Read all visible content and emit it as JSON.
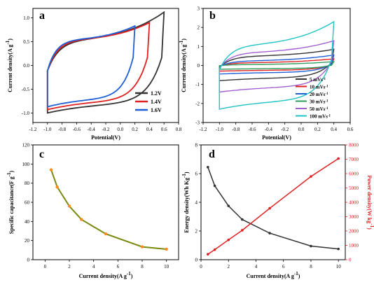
{
  "chart_data": [
    {
      "id": "a",
      "type": "line",
      "panel_letter": "a",
      "xlabel": "Potential(V)",
      "ylabel": "Current density(A g",
      "ylabel_sup": "-1",
      "ylabel_end": ")",
      "xlim": [
        -1.2,
        0.8
      ],
      "ylim": [
        -1.2,
        1.2
      ],
      "xticks": [
        "-1.2",
        "-1.0",
        "-0.8",
        "-0.6",
        "-0.4",
        "-0.2",
        "0.0",
        "0.2",
        "0.4",
        "0.6",
        "0.8"
      ],
      "yticks": [
        "-1.0",
        "-0.5",
        "0.0",
        "0.5",
        "1.0"
      ],
      "legend_position": "bottom-right",
      "series": [
        {
          "name": "1.2V",
          "color": "#333333",
          "vmax": 0.6,
          "i_top": 1.12,
          "i_bottom": -1.0,
          "i_plateau": 0.55
        },
        {
          "name": "1.4V",
          "color": "#e02020",
          "vmax": 0.4,
          "i_top": 0.9,
          "i_bottom": -0.93,
          "i_plateau": 0.55
        },
        {
          "name": "1.6V",
          "color": "#1f5fd6",
          "vmax": 0.2,
          "i_top": 0.83,
          "i_bottom": -0.87,
          "i_plateau": 0.55
        }
      ]
    },
    {
      "id": "b",
      "type": "line",
      "panel_letter": "b",
      "xlabel": "Potential(V)",
      "ylabel": "Current density(A g",
      "ylabel_sup": "-1",
      "ylabel_end": ")",
      "xlim": [
        -1.2,
        0.6
      ],
      "ylim": [
        -3,
        3
      ],
      "xticks": [
        "-1.2",
        "-1.0",
        "-0.8",
        "-0.6",
        "-0.4",
        "-0.2",
        "0.0",
        "0.2",
        "0.4",
        "0.6"
      ],
      "yticks": [
        "-3",
        "-2",
        "-1",
        "0",
        "1",
        "2",
        "3"
      ],
      "legend_position": "bottom-right",
      "series": [
        {
          "name": "5 mVs",
          "sup": "-1",
          "color": "#333333",
          "i_top": 0.85,
          "i_bottom": -0.8,
          "i_plateau": 0.5
        },
        {
          "name": "10 mVs",
          "sup": "-1",
          "color": "#e02020",
          "i_top": 0.35,
          "i_bottom": -0.3,
          "i_plateau": 0.15
        },
        {
          "name": "20 mVs",
          "sup": "-1",
          "color": "#1f5fd6",
          "i_top": 0.55,
          "i_bottom": -0.45,
          "i_plateau": 0.25
        },
        {
          "name": "30 mVs",
          "sup": "-1",
          "color": "#2a9d5a",
          "i_top": 0.2,
          "i_bottom": -0.2,
          "i_plateau": 0.05
        },
        {
          "name": "50 mVs",
          "sup": "-1",
          "color": "#a35fd0",
          "i_top": 1.3,
          "i_bottom": -1.4,
          "i_plateau": 0.7
        },
        {
          "name": "100 mVs",
          "sup": "-1",
          "color": "#20c4c4",
          "i_top": 2.3,
          "i_bottom": -2.3,
          "i_plateau": 1.1
        }
      ]
    },
    {
      "id": "c",
      "type": "line",
      "panel_letter": "c",
      "xlabel": "Current density(A g",
      "xlabel_sup": "-1",
      "xlabel_end": ")",
      "ylabel": "Specific capacitance(F g",
      "ylabel_sup": "-1",
      "ylabel_end": ")",
      "xlim": [
        -1,
        11
      ],
      "ylim": [
        0,
        120
      ],
      "xticks": [
        "0",
        "2",
        "4",
        "6",
        "8",
        "10"
      ],
      "yticks": [
        "0",
        "20",
        "40",
        "60",
        "80",
        "100",
        "120"
      ],
      "line_color": "#7a8a10",
      "marker_color": "#ff8c1a",
      "x": [
        0.5,
        1,
        2,
        3,
        5,
        8,
        10
      ],
      "y": [
        94,
        76,
        56,
        42,
        27,
        13.5,
        11
      ]
    },
    {
      "id": "d",
      "type": "line",
      "panel_letter": "d",
      "xlabel": "Current density(A g",
      "xlabel_sup": "-1",
      "xlabel_end": ")",
      "ylabel_left": "Energy density(Wh Kg",
      "ylabel_left_sup": "-1",
      "ylabel_left_end": ")",
      "ylabel_right": "Power density(W kg",
      "ylabel_right_sup": "-1",
      "ylabel_right_end": ")",
      "xlim": [
        0,
        10.5
      ],
      "ylim_left": [
        0,
        8
      ],
      "ylim_right": [
        0,
        8000
      ],
      "xticks": [
        "0",
        "2",
        "4",
        "6",
        "8",
        "10"
      ],
      "yticks_left": [
        "0",
        "2",
        "4",
        "6",
        "8"
      ],
      "yticks_right": [
        "0",
        "1000",
        "2000",
        "3000",
        "4000",
        "5000",
        "6000",
        "7000",
        "8000"
      ],
      "right_axis_color": "#e02020",
      "series": [
        {
          "axis": "left",
          "color": "#333333",
          "x": [
            0.5,
            1,
            2,
            3,
            5,
            8,
            10
          ],
          "y": [
            6.45,
            5.15,
            3.75,
            2.8,
            1.85,
            0.95,
            0.75
          ]
        },
        {
          "axis": "right",
          "color": "#e02020",
          "x": [
            0.5,
            1,
            2,
            3,
            5,
            8,
            10
          ],
          "y": [
            380,
            700,
            1380,
            2050,
            3580,
            5800,
            7050
          ]
        }
      ]
    }
  ]
}
